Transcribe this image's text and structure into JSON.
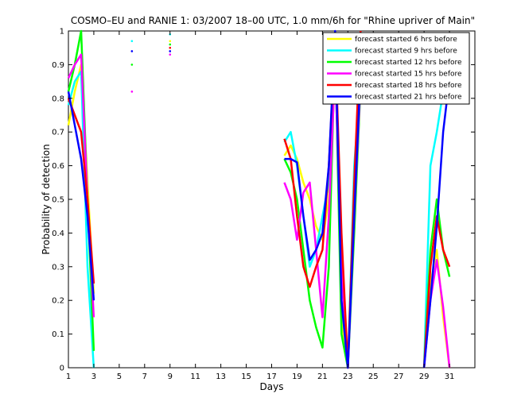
{
  "chart_data": {
    "type": "line",
    "title": "COSMO–EU and RANIE 1: 03/2007 18–00 UTC, 1.0 mm/6h for \"Rhine upriver of Main\"",
    "xlabel": "Days",
    "ylabel": "Probability of detection",
    "xlim": [
      1,
      33
    ],
    "ylim": [
      0,
      1
    ],
    "xticks": [
      1,
      3,
      5,
      7,
      9,
      11,
      13,
      15,
      17,
      19,
      21,
      23,
      25,
      27,
      29,
      31
    ],
    "yticks": [
      0,
      0.1,
      0.2,
      0.3,
      0.4,
      0.5,
      0.6,
      0.7,
      0.8,
      0.9,
      1
    ],
    "grid": false,
    "legend_position": "top-right",
    "series": [
      {
        "name": "forecast started 6 hrs before",
        "color": "#ffff00",
        "points": [
          [
            1,
            0.72
          ],
          [
            1.5,
            0.82
          ],
          [
            2,
            0.9
          ],
          [
            2.5,
            0.55
          ],
          [
            3,
            0.22
          ],
          null,
          [
            18,
            0.63
          ],
          [
            18.5,
            0.66
          ],
          [
            19,
            0.62
          ],
          [
            19.5,
            0.55
          ],
          [
            20,
            0.5
          ],
          [
            20.5,
            0.42
          ],
          [
            21,
            0.38
          ],
          [
            21.5,
            0.5
          ],
          [
            22,
            0.98
          ],
          [
            22.5,
            0.15
          ],
          [
            23,
            0
          ],
          [
            23.5,
            0.5
          ],
          [
            24,
            0.88
          ],
          null,
          [
            29,
            0
          ],
          [
            29.5,
            0.25
          ],
          [
            30,
            0.35
          ],
          [
            30.5,
            0.15
          ],
          [
            31,
            0
          ]
        ],
        "dots": [
          [
            9,
            0.97
          ]
        ]
      },
      {
        "name": "forecast started 9 hrs before",
        "color": "#00ffff",
        "points": [
          [
            1,
            0.78
          ],
          [
            1.5,
            0.85
          ],
          [
            2,
            0.88
          ],
          [
            2.5,
            0.3
          ],
          [
            3,
            0
          ],
          null,
          [
            18,
            0.67
          ],
          [
            18.5,
            0.7
          ],
          [
            19,
            0.6
          ],
          [
            19.5,
            0.45
          ],
          [
            20,
            0.3
          ],
          [
            20.5,
            0.35
          ],
          [
            21,
            0.45
          ],
          [
            21.5,
            0.55
          ],
          [
            22,
            0.95
          ],
          [
            22.5,
            0.2
          ],
          [
            23,
            0
          ],
          [
            23.5,
            0.6
          ],
          [
            24,
            0.86
          ],
          null,
          [
            29,
            0
          ],
          [
            29.5,
            0.6
          ],
          [
            30,
            0.7
          ],
          [
            30.5,
            0.82
          ],
          [
            31,
            0.9
          ]
        ],
        "dots": [
          [
            6,
            0.97
          ],
          [
            9,
            0.99
          ]
        ]
      },
      {
        "name": "forecast started 12 hrs before",
        "color": "#00ff00",
        "points": [
          [
            1,
            0.82
          ],
          [
            1.5,
            0.9
          ],
          [
            2,
            1.0
          ],
          [
            2.5,
            0.5
          ],
          [
            3,
            0.05
          ],
          null,
          [
            18,
            0.62
          ],
          [
            18.5,
            0.58
          ],
          [
            19,
            0.5
          ],
          [
            19.5,
            0.35
          ],
          [
            20,
            0.2
          ],
          [
            20.5,
            0.12
          ],
          [
            21,
            0.06
          ],
          [
            21.5,
            0.3
          ],
          [
            22,
            0.96
          ],
          [
            22.5,
            0.1
          ],
          [
            23,
            0
          ],
          [
            23.5,
            0.4
          ],
          [
            24,
            0.84
          ],
          null,
          [
            29,
            0
          ],
          [
            29.5,
            0.35
          ],
          [
            30,
            0.5
          ],
          [
            30.5,
            0.35
          ],
          [
            31,
            0.27
          ]
        ],
        "dots": [
          [
            6,
            0.9
          ],
          [
            9,
            0.96
          ]
        ]
      },
      {
        "name": "forecast started 15 hrs before",
        "color": "#ff00ff",
        "points": [
          [
            1,
            0.86
          ],
          [
            1.5,
            0.9
          ],
          [
            2,
            0.93
          ],
          [
            2.5,
            0.5
          ],
          [
            3,
            0.15
          ],
          null,
          [
            18,
            0.55
          ],
          [
            18.5,
            0.5
          ],
          [
            19,
            0.38
          ],
          [
            19.5,
            0.52
          ],
          [
            20,
            0.55
          ],
          [
            20.5,
            0.35
          ],
          [
            21,
            0.15
          ],
          [
            21.5,
            0.45
          ],
          [
            22,
            0.9
          ],
          [
            22.5,
            0.3
          ],
          [
            23,
            0
          ],
          [
            23.5,
            0.45
          ],
          [
            24,
            0.85
          ],
          null,
          [
            29,
            0
          ],
          [
            29.5,
            0.2
          ],
          [
            30,
            0.32
          ],
          [
            30.5,
            0.18
          ],
          [
            31,
            0
          ]
        ],
        "dots": [
          [
            6,
            0.82
          ],
          [
            9,
            0.93
          ]
        ]
      },
      {
        "name": "forecast started 18 hrs before",
        "color": "#ff0000",
        "points": [
          [
            1,
            0.8
          ],
          [
            1.5,
            0.75
          ],
          [
            2,
            0.7
          ],
          [
            2.5,
            0.5
          ],
          [
            3,
            0.25
          ],
          null,
          [
            18,
            0.68
          ],
          [
            18.5,
            0.62
          ],
          [
            19,
            0.45
          ],
          [
            19.5,
            0.3
          ],
          [
            20,
            0.24
          ],
          [
            20.5,
            0.3
          ],
          [
            21,
            0.35
          ],
          [
            21.5,
            0.6
          ],
          [
            22,
            0.97
          ],
          [
            22.5,
            0.4
          ],
          [
            23,
            0
          ],
          [
            23.5,
            0.55
          ],
          [
            24,
            1.0
          ],
          null,
          [
            29,
            0
          ],
          [
            29.5,
            0.3
          ],
          [
            30,
            0.45
          ],
          [
            30.5,
            0.35
          ],
          [
            31,
            0.3
          ]
        ],
        "dots": [
          [
            9,
            0.95
          ]
        ]
      },
      {
        "name": "forecast started 21 hrs before",
        "color": "#0000ff",
        "points": [
          [
            1,
            0.82
          ],
          [
            1.5,
            0.72
          ],
          [
            2,
            0.62
          ],
          [
            2.5,
            0.45
          ],
          [
            3,
            0.2
          ],
          null,
          [
            18,
            0.62
          ],
          [
            18.5,
            0.62
          ],
          [
            19,
            0.61
          ],
          [
            19.5,
            0.45
          ],
          [
            20,
            0.32
          ],
          [
            20.5,
            0.35
          ],
          [
            21,
            0.4
          ],
          [
            21.5,
            0.6
          ],
          [
            22,
            1.0
          ],
          [
            22.5,
            0.2
          ],
          [
            23,
            0
          ],
          [
            23.5,
            0.45
          ],
          [
            24,
            0.88
          ],
          null,
          [
            29,
            0
          ],
          [
            29.5,
            0.2
          ],
          [
            30,
            0.42
          ],
          [
            30.5,
            0.7
          ],
          [
            31,
            0.86
          ]
        ],
        "dots": [
          [
            6,
            0.94
          ],
          [
            9,
            0.94
          ]
        ]
      }
    ]
  }
}
